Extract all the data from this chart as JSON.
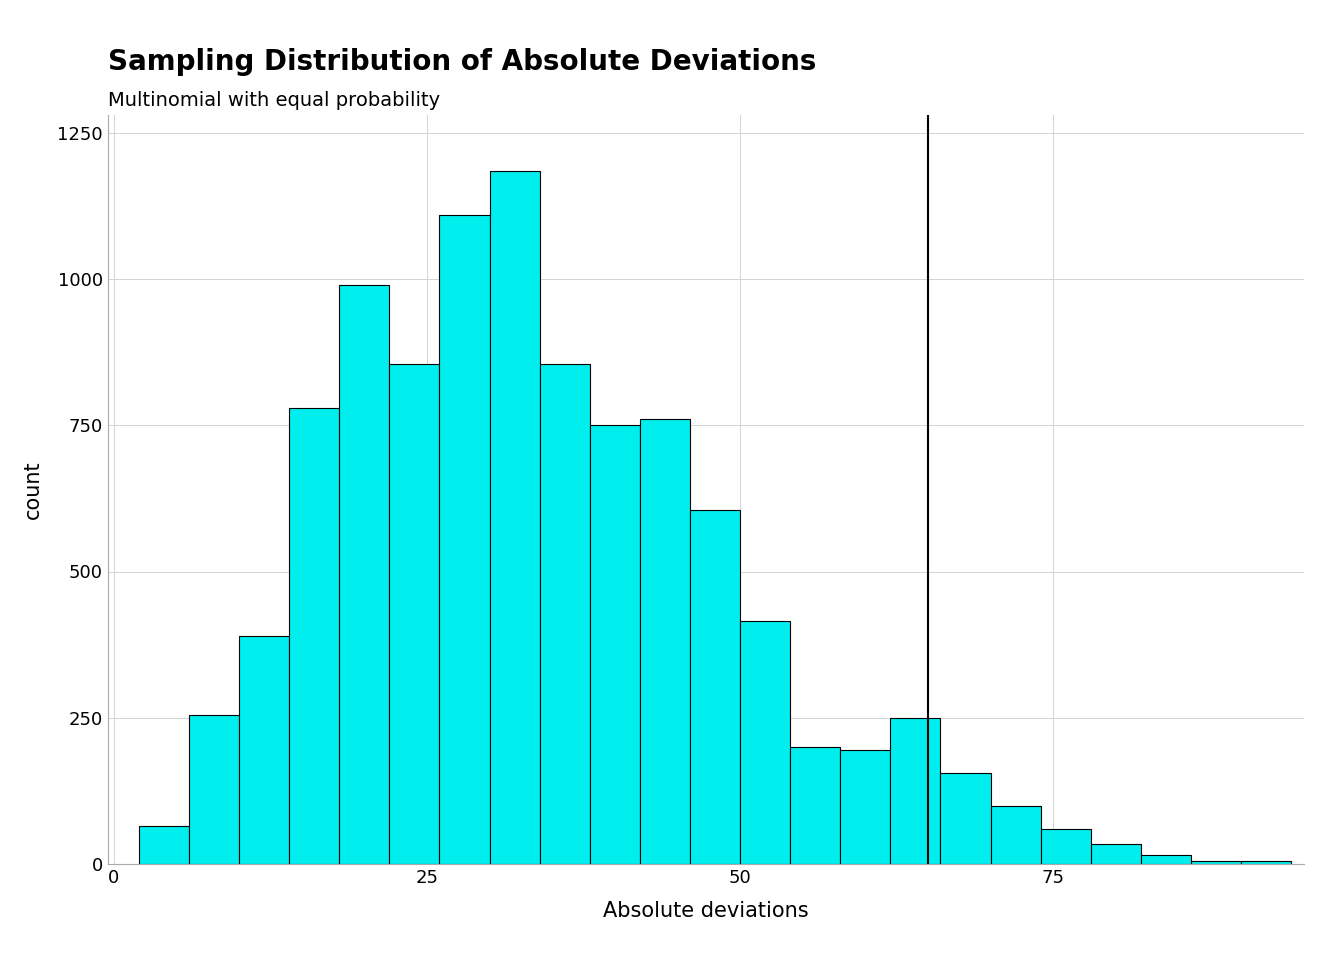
{
  "title": "Sampling Distribution of Absolute Deviations",
  "subtitle": "Multinomial with equal probability",
  "xlabel": "Absolute deviations",
  "ylabel": "count",
  "bar_color": "#00EEEE",
  "bar_edge_color": "#000000",
  "vline_x": 65,
  "vline_color": "#000000",
  "vline_lw": 1.5,
  "xlim": [
    -0.5,
    95
  ],
  "ylim": [
    0,
    1280
  ],
  "yticks": [
    0,
    250,
    500,
    750,
    1000,
    1250
  ],
  "xticks": [
    0,
    25,
    50,
    75
  ],
  "grid_color": "#d3d3d3",
  "background_color": "#ffffff",
  "bin_starts": [
    2,
    6,
    10,
    14,
    18,
    22,
    26,
    30,
    34,
    38,
    42,
    46,
    50,
    54,
    58,
    62,
    66,
    70,
    74,
    78,
    82,
    86,
    90
  ],
  "bin_width": 4,
  "counts": [
    65,
    255,
    390,
    780,
    990,
    855,
    1110,
    1185,
    855,
    750,
    760,
    605,
    415,
    200,
    195,
    250,
    155,
    100,
    60,
    35,
    15,
    5,
    5
  ],
  "title_fontsize": 20,
  "subtitle_fontsize": 14,
  "axis_label_fontsize": 15,
  "tick_fontsize": 13
}
